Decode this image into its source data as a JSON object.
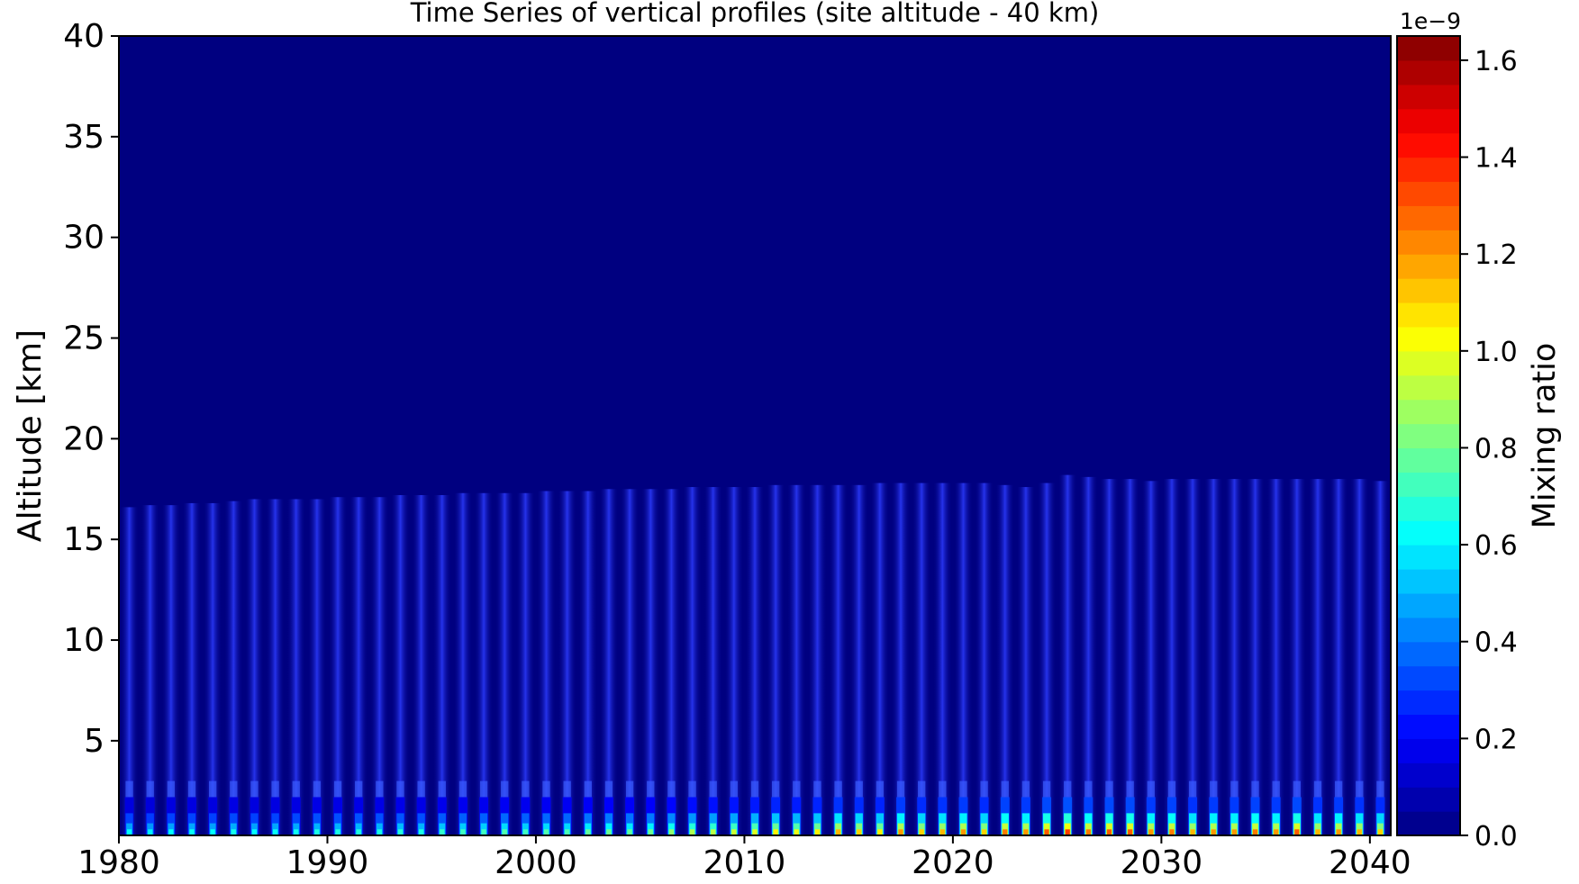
{
  "chart_data": {
    "type": "heatmap",
    "title": "Time Series of vertical profiles (site altitude - 40 km)",
    "xlabel": "",
    "ylabel": "Altitude [km]",
    "xlim": [
      1980,
      2041
    ],
    "ylim": [
      0.3,
      40
    ],
    "x_ticks": [
      1980,
      1990,
      2000,
      2010,
      2020,
      2030,
      2040
    ],
    "y_ticks": [
      5,
      10,
      15,
      20,
      25,
      30,
      35,
      40
    ],
    "colorbar": {
      "label": "Mixing ratio",
      "offset_text": "1e−9",
      "range": [
        0.0,
        1.65
      ],
      "ticks": [
        "0.0",
        "0.2",
        "0.4",
        "0.6",
        "0.8",
        "1.0",
        "1.2",
        "1.4",
        "1.6"
      ],
      "levels": 33,
      "colormap": "jet"
    },
    "annual_cycle": {
      "start_year": 1980,
      "end_year": 2040,
      "top_altitude_km": [
        16.6,
        16.7,
        16.7,
        16.8,
        16.8,
        16.9,
        17.0,
        17.0,
        17.0,
        17.0,
        17.1,
        17.1,
        17.1,
        17.2,
        17.2,
        17.2,
        17.3,
        17.3,
        17.3,
        17.3,
        17.4,
        17.4,
        17.4,
        17.5,
        17.5,
        17.5,
        17.5,
        17.6,
        17.6,
        17.6,
        17.6,
        17.7,
        17.7,
        17.7,
        17.7,
        17.7,
        17.8,
        17.8,
        17.8,
        17.8,
        17.8,
        17.8,
        17.7,
        17.6,
        17.8,
        18.2,
        18.1,
        18.0,
        18.0,
        17.9,
        18.0,
        18.0,
        18.0,
        18.0,
        18.0,
        18.0,
        18.0,
        18.0,
        18.0,
        18.0,
        17.9
      ],
      "surface_peak_e9": [
        0.62,
        0.6,
        0.62,
        0.63,
        0.62,
        0.65,
        0.62,
        0.63,
        0.64,
        0.66,
        0.66,
        0.67,
        0.66,
        0.68,
        0.66,
        0.7,
        0.72,
        0.72,
        0.75,
        0.72,
        0.75,
        0.74,
        0.78,
        0.8,
        0.78,
        0.8,
        0.85,
        0.9,
        0.92,
        0.95,
        0.98,
        1.05,
        1.0,
        1.05,
        1.15,
        1.1,
        1.05,
        1.2,
        1.1,
        1.15,
        1.2,
        1.1,
        1.25,
        1.2,
        1.3,
        1.35,
        1.25,
        1.3,
        1.3,
        1.2,
        1.25,
        1.15,
        1.2,
        1.2,
        1.25,
        1.2,
        1.3,
        1.15,
        1.2,
        1.15,
        1.1
      ]
    }
  }
}
